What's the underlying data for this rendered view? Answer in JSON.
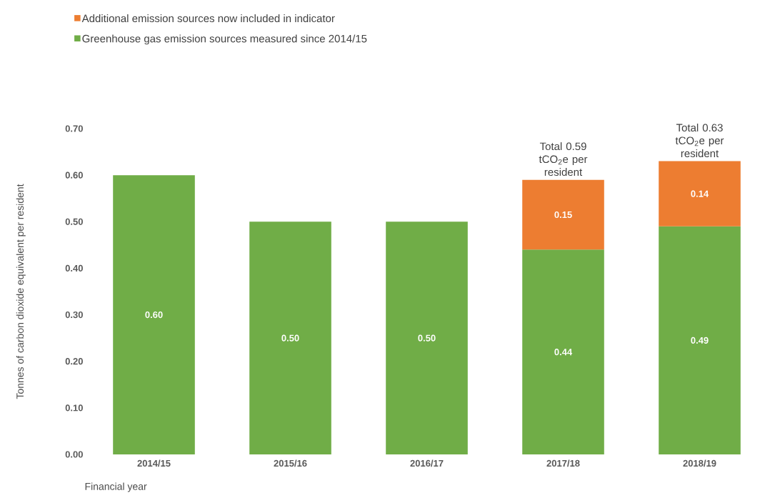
{
  "chart_data": {
    "type": "bar",
    "stacked": true,
    "xlabel": "Financial year",
    "ylabel": "Tonnes of carbon dioxide equivalent per resident",
    "categories": [
      "2014/15",
      "2015/16",
      "2016/17",
      "2017/18",
      "2018/19"
    ],
    "series": [
      {
        "name": "Greenhouse gas emission sources measured since 2014/15",
        "color": "#70ad47",
        "values": [
          0.6,
          0.5,
          0.5,
          0.44,
          0.49
        ],
        "value_labels": [
          "0.60",
          "0.50",
          "0.50",
          "0.44",
          "0.49"
        ]
      },
      {
        "name": "Additional emission sources now included in indicator",
        "color": "#ed7d31",
        "values": [
          null,
          null,
          null,
          0.15,
          0.14
        ],
        "value_labels": [
          null,
          null,
          null,
          "0.15",
          "0.14"
        ]
      }
    ],
    "totals": [
      null,
      null,
      null,
      "Total 0.59 tCO$_{2}$e per resident",
      "Total 0.63 tCO$_{2}$e per resident"
    ],
    "ylim": [
      0,
      0.7
    ],
    "yticks": [
      {
        "value": 0,
        "label": "0.00"
      },
      {
        "value": 0.1,
        "label": "0.10"
      },
      {
        "value": 0.2,
        "label": "0.20"
      },
      {
        "value": 0.3,
        "label": "0.30"
      },
      {
        "value": 0.4,
        "label": "0.40"
      },
      {
        "value": 0.5,
        "label": "0.50"
      },
      {
        "value": 0.6,
        "label": "0.60"
      },
      {
        "value": 0.7,
        "label": "0.70"
      }
    ],
    "legend": "top"
  }
}
